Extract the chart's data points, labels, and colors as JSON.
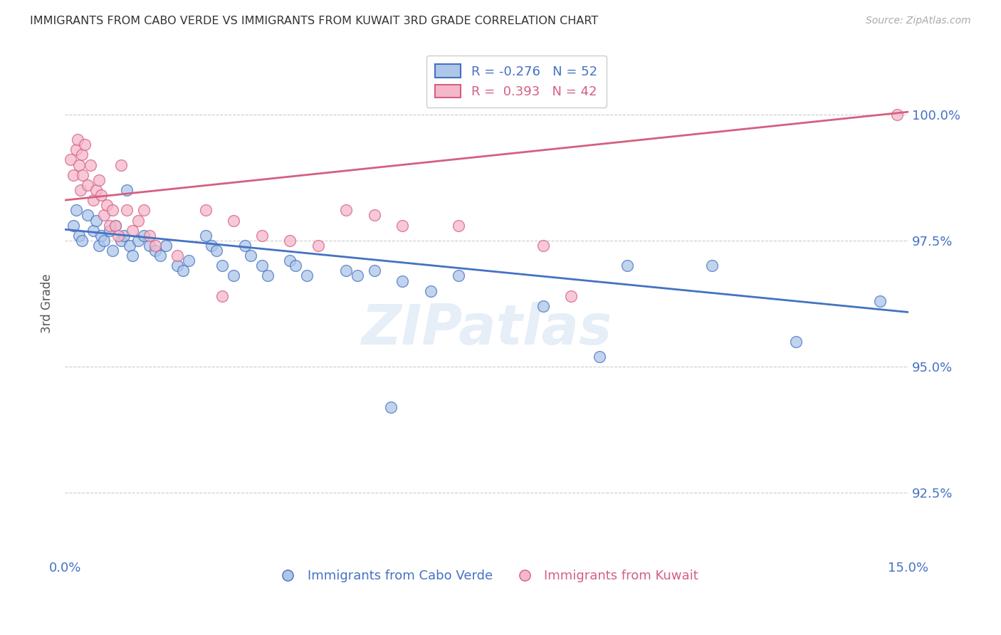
{
  "title": "IMMIGRANTS FROM CABO VERDE VS IMMIGRANTS FROM KUWAIT 3RD GRADE CORRELATION CHART",
  "source": "Source: ZipAtlas.com",
  "ylabel": "3rd Grade",
  "yticks": [
    92.5,
    95.0,
    97.5,
    100.0
  ],
  "ytick_labels": [
    "92.5%",
    "95.0%",
    "97.5%",
    "100.0%"
  ],
  "xmin": 0.0,
  "xmax": 15.0,
  "ymin": 91.2,
  "ymax": 101.3,
  "watermark": "ZIPatlas",
  "legend_blue_r": "-0.276",
  "legend_blue_n": "52",
  "legend_pink_r": "0.393",
  "legend_pink_n": "42",
  "blue_scatter_x": [
    0.15,
    0.2,
    0.25,
    0.3,
    0.4,
    0.5,
    0.55,
    0.6,
    0.65,
    0.7,
    0.8,
    0.85,
    0.9,
    1.0,
    1.05,
    1.1,
    1.15,
    1.2,
    1.3,
    1.4,
    1.5,
    1.6,
    1.7,
    1.8,
    2.0,
    2.1,
    2.2,
    2.5,
    2.6,
    2.7,
    2.8,
    3.0,
    3.2,
    3.3,
    3.5,
    3.6,
    4.0,
    4.1,
    4.3,
    5.0,
    5.2,
    5.5,
    5.8,
    6.0,
    6.5,
    7.0,
    8.5,
    9.5,
    10.0,
    11.5,
    13.0,
    14.5
  ],
  "blue_scatter_y": [
    97.8,
    98.1,
    97.6,
    97.5,
    98.0,
    97.7,
    97.9,
    97.4,
    97.6,
    97.5,
    97.7,
    97.3,
    97.8,
    97.5,
    97.6,
    98.5,
    97.4,
    97.2,
    97.5,
    97.6,
    97.4,
    97.3,
    97.2,
    97.4,
    97.0,
    96.9,
    97.1,
    97.6,
    97.4,
    97.3,
    97.0,
    96.8,
    97.4,
    97.2,
    97.0,
    96.8,
    97.1,
    97.0,
    96.8,
    96.9,
    96.8,
    96.9,
    94.2,
    96.7,
    96.5,
    96.8,
    96.2,
    95.2,
    97.0,
    97.0,
    95.5,
    96.3
  ],
  "pink_scatter_x": [
    0.1,
    0.15,
    0.2,
    0.22,
    0.25,
    0.28,
    0.3,
    0.32,
    0.35,
    0.4,
    0.45,
    0.5,
    0.55,
    0.6,
    0.65,
    0.7,
    0.75,
    0.8,
    0.85,
    0.9,
    0.95,
    1.0,
    1.1,
    1.2,
    1.3,
    1.4,
    1.5,
    1.6,
    2.0,
    2.5,
    2.8,
    3.0,
    3.5,
    4.0,
    4.5,
    5.0,
    5.5,
    6.0,
    7.0,
    8.5,
    9.0,
    14.8
  ],
  "pink_scatter_y": [
    99.1,
    98.8,
    99.3,
    99.5,
    99.0,
    98.5,
    99.2,
    98.8,
    99.4,
    98.6,
    99.0,
    98.3,
    98.5,
    98.7,
    98.4,
    98.0,
    98.2,
    97.8,
    98.1,
    97.8,
    97.6,
    99.0,
    98.1,
    97.7,
    97.9,
    98.1,
    97.6,
    97.4,
    97.2,
    98.1,
    96.4,
    97.9,
    97.6,
    97.5,
    97.4,
    98.1,
    98.0,
    97.8,
    97.8,
    97.4,
    96.4,
    100.0
  ],
  "blue_color": "#aec6e8",
  "pink_color": "#f5b8cb",
  "blue_line_color": "#4472c4",
  "pink_line_color": "#d46080",
  "grid_color": "#cccccc",
  "axis_color": "#4472c4",
  "title_color": "#333333"
}
